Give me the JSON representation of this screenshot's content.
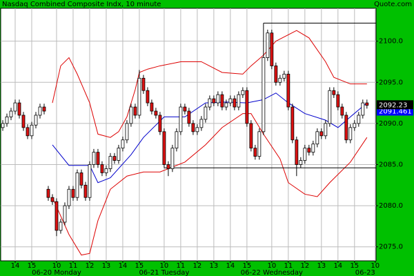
{
  "chart_data": {
    "type": "candlestick",
    "title": "Nasdaq Combined Composite Indx, 10 minute",
    "source": "Quote.com",
    "up_color": "#ffffff",
    "down_color": "#dd1111",
    "open": [
      2089.5,
      2090.0,
      2090.8,
      2091.5,
      2092.5,
      2091.0,
      2089.5,
      2088.5,
      2089.8,
      2091.0,
      2092.0,
      2082.0,
      2081.0,
      2080.5,
      2077.0,
      2078.0,
      2080.0,
      2082.0,
      2081.0,
      2084.0,
      2082.5,
      2081.0,
      2085.0,
      2086.5,
      2085.0,
      2084.0,
      2084.5,
      2086.0,
      2085.5,
      2087.0,
      2088.0,
      2090.0,
      2092.0,
      2091.0,
      2095.5,
      2094.0,
      2092.5,
      2091.5,
      2091.0,
      2089.0,
      2085.0,
      2084.5,
      2087.0,
      2089.0,
      2092.0,
      2091.5,
      2090.0,
      2089.0,
      2089.5,
      2090.5,
      2092.0,
      2093.0,
      2092.5,
      2093.5,
      2092.0,
      2092.5,
      2093.0,
      2092.0,
      2093.5,
      2094.0,
      2090.0,
      2087.0,
      2086.0,
      2089.0,
      2098.0,
      2101.0,
      2097.0,
      2095.0,
      2095.5,
      2096.0,
      2092.0,
      2088.0,
      2085.0,
      2085.5,
      2087.0,
      2086.5,
      2087.5,
      2089.0,
      2088.5,
      2090.0,
      2094.0,
      2093.5,
      2092.0,
      2091.0,
      2088.0,
      2089.5,
      2090.0,
      2091.0,
      2092.5
    ],
    "high": [
      2090.4,
      2091.2,
      2091.9,
      2092.9,
      2092.9,
      2091.4,
      2089.9,
      2090.2,
      2091.4,
      2092.4,
      2092.4,
      2082.4,
      2081.4,
      2080.9,
      2078.4,
      2080.4,
      2082.4,
      2082.4,
      2084.4,
      2084.4,
      2082.9,
      2085.4,
      2086.9,
      2086.9,
      2085.4,
      2084.9,
      2086.4,
      2086.4,
      2087.4,
      2088.4,
      2090.4,
      2092.4,
      2092.4,
      2096.5,
      2095.9,
      2094.4,
      2092.9,
      2091.9,
      2091.4,
      2089.4,
      2085.4,
      2087.4,
      2089.4,
      2092.4,
      2092.4,
      2091.9,
      2090.4,
      2089.9,
      2090.9,
      2092.4,
      2093.4,
      2093.4,
      2093.9,
      2093.9,
      2092.9,
      2093.4,
      2093.4,
      2093.9,
      2094.4,
      2094.4,
      2090.4,
      2087.4,
      2089.4,
      2102.2,
      2101.4,
      2101.4,
      2097.4,
      2095.9,
      2096.4,
      2096.4,
      2092.4,
      2088.4,
      2085.9,
      2087.4,
      2087.4,
      2087.9,
      2089.4,
      2089.4,
      2090.4,
      2094.4,
      2094.4,
      2093.9,
      2092.4,
      2091.4,
      2089.9,
      2090.4,
      2091.4,
      2092.9,
      2092.9
    ],
    "low": [
      2089.1,
      2089.6,
      2090.4,
      2091.1,
      2090.6,
      2089.1,
      2088.1,
      2088.1,
      2089.4,
      2090.6,
      2091.1,
      2080.6,
      2080.1,
      2076.3,
      2076.6,
      2077.6,
      2079.6,
      2080.6,
      2080.6,
      2082.1,
      2080.6,
      2080.6,
      2084.6,
      2084.6,
      2083.6,
      2083.6,
      2084.1,
      2085.1,
      2085.1,
      2086.6,
      2087.6,
      2089.6,
      2090.6,
      2090.6,
      2093.6,
      2092.1,
      2091.1,
      2090.6,
      2088.6,
      2084.6,
      2083.6,
      2084.1,
      2086.6,
      2088.6,
      2091.1,
      2089.6,
      2088.6,
      2088.6,
      2089.1,
      2090.1,
      2091.6,
      2092.1,
      2092.1,
      2091.6,
      2091.6,
      2092.1,
      2091.6,
      2091.6,
      2093.1,
      2089.6,
      2086.6,
      2085.6,
      2085.6,
      2088.6,
      2097.6,
      2096.6,
      2094.6,
      2094.6,
      2095.1,
      2091.6,
      2087.6,
      2083.6,
      2084.6,
      2085.1,
      2086.1,
      2086.1,
      2087.1,
      2088.1,
      2088.1,
      2089.6,
      2093.1,
      2091.6,
      2090.6,
      2087.6,
      2087.6,
      2089.1,
      2089.6,
      2090.6,
      2091.8
    ],
    "close": [
      2090.0,
      2090.8,
      2091.5,
      2092.5,
      2091.0,
      2089.5,
      2088.5,
      2089.8,
      2091.0,
      2092.0,
      2091.5,
      2081.0,
      2080.5,
      2077.0,
      2078.0,
      2080.0,
      2082.0,
      2081.0,
      2084.0,
      2082.5,
      2081.0,
      2085.0,
      2086.5,
      2085.0,
      2084.0,
      2084.5,
      2086.0,
      2085.5,
      2087.0,
      2088.0,
      2090.0,
      2092.0,
      2091.0,
      2095.5,
      2094.0,
      2092.5,
      2091.5,
      2091.0,
      2089.0,
      2085.0,
      2084.5,
      2087.0,
      2089.0,
      2092.0,
      2091.5,
      2090.0,
      2089.0,
      2089.5,
      2090.5,
      2092.0,
      2093.0,
      2092.5,
      2093.5,
      2092.0,
      2092.5,
      2093.0,
      2092.0,
      2093.5,
      2094.0,
      2090.0,
      2087.0,
      2086.0,
      2089.0,
      2098.0,
      2101.0,
      2097.0,
      2095.0,
      2095.5,
      2096.0,
      2092.0,
      2088.0,
      2085.0,
      2085.5,
      2087.0,
      2086.5,
      2087.5,
      2089.0,
      2088.5,
      2090.0,
      2094.0,
      2093.5,
      2092.0,
      2091.0,
      2088.0,
      2089.5,
      2090.0,
      2091.0,
      2092.5,
      2092.2
    ],
    "overlays": [
      {
        "color": "#dd0000",
        "x": [
          12,
          14,
          16,
          18,
          21,
          23,
          26,
          28,
          30,
          32,
          33,
          35,
          38,
          43,
          48,
          53,
          58,
          60,
          63,
          66,
          71,
          74,
          78,
          80,
          84,
          88
        ],
        "values": [
          2092.5,
          2097,
          2098,
          2096,
          2092.5,
          2088.7,
          2088.3,
          2089,
          2090.8,
          2094.1,
          2096.2,
          2096.6,
          2097,
          2097.5,
          2097.5,
          2096.2,
          2096,
          2097,
          2098.3,
          2100,
          2101.3,
          2100.4,
          2097.5,
          2095.6,
          2094.8,
          2094.8
        ]
      },
      {
        "color": "#0000cc",
        "x": [
          12,
          16,
          21,
          23,
          26,
          31,
          34,
          39,
          44,
          49,
          54,
          59,
          63,
          66,
          69,
          73,
          78,
          81,
          84,
          88
        ],
        "values": [
          2087.4,
          2084.9,
          2084.9,
          2082.8,
          2083.4,
          2086.2,
          2088.3,
          2090.8,
          2090.8,
          2092.5,
          2092.6,
          2092.5,
          2092.9,
          2093.7,
          2092.5,
          2091.2,
          2090.4,
          2089.5,
          2090.8,
          2092.5
        ]
      },
      {
        "color": "#dd0000",
        "x": [
          12,
          16,
          19,
          21,
          23,
          26,
          30,
          34,
          38,
          40,
          44,
          49,
          53,
          58,
          60,
          63,
          67,
          69,
          73,
          76,
          79,
          84,
          88
        ],
        "values": [
          2081,
          2076.5,
          2074,
          2074.2,
          2078.2,
          2082,
          2083.6,
          2084.1,
          2084.1,
          2084.5,
          2085.3,
          2087.4,
          2089.5,
          2091.2,
          2091.2,
          2088.7,
          2085.7,
          2082.8,
          2081.4,
          2081.1,
          2082.8,
          2085.3,
          2088.3
        ]
      }
    ],
    "reference_lines": [
      {
        "y": 2102.2,
        "x_start": 63
      },
      {
        "y": 2084.6,
        "x_start": 39
      }
    ],
    "last_price": {
      "value": 2092.23,
      "label": "2092.23"
    },
    "indicator_value": {
      "value": 2091.46,
      "label": "2091.461"
    },
    "xlim": [
      -0.5,
      90.2
    ],
    "ylim": [
      2073.3,
      2104.0
    ],
    "xticks": [
      {
        "value": 3,
        "label": "14"
      },
      {
        "value": 7,
        "label": "15"
      },
      {
        "value": 13,
        "label": "10"
      },
      {
        "value": 17,
        "label": "11"
      },
      {
        "value": 21,
        "label": "12"
      },
      {
        "value": 25,
        "label": "13"
      },
      {
        "value": 29,
        "label": "14"
      },
      {
        "value": 33,
        "label": "15"
      },
      {
        "value": 39,
        "label": "10"
      },
      {
        "value": 43,
        "label": "11"
      },
      {
        "value": 47,
        "label": "12"
      },
      {
        "value": 51,
        "label": "13"
      },
      {
        "value": 55,
        "label": "14"
      },
      {
        "value": 59,
        "label": "15"
      },
      {
        "value": 65,
        "label": "10"
      },
      {
        "value": 69,
        "label": "11"
      },
      {
        "value": 73,
        "label": "12"
      },
      {
        "value": 77,
        "label": "13"
      },
      {
        "value": 81,
        "label": "14"
      },
      {
        "value": 85,
        "label": "15"
      },
      {
        "value": 90,
        "label": "10"
      }
    ],
    "date_labels": [
      {
        "value": 13,
        "label": "06-20 Monday"
      },
      {
        "value": 39,
        "label": "06-21 Tuesday"
      },
      {
        "value": 65,
        "label": "06-22 Wednesday"
      },
      {
        "value": 90,
        "label": "06-23"
      }
    ],
    "yticks": [
      {
        "value": 2075,
        "label": "2075.0"
      },
      {
        "value": 2080,
        "label": "2080.0"
      },
      {
        "value": 2085,
        "label": "2085.0"
      },
      {
        "value": 2090,
        "label": "2090.0"
      },
      {
        "value": 2095,
        "label": "2095.0"
      },
      {
        "value": 2100,
        "label": "2100.0"
      }
    ],
    "grid": true
  }
}
